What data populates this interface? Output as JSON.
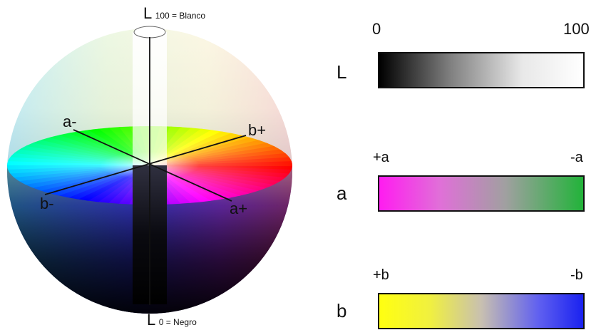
{
  "sphere": {
    "top_label_letter": "L",
    "top_label_value": "100 = Blanco",
    "bottom_label_letter": "L",
    "bottom_label_value": "0 = Negro",
    "axis_labels": {
      "a_minus": "a-",
      "a_plus": "a+",
      "b_plus": "b+",
      "b_minus": "b-"
    }
  },
  "scales": {
    "L": {
      "name": "L",
      "left_end": "0",
      "right_end": "100",
      "colors": [
        "#000000",
        "#ffffff"
      ]
    },
    "a": {
      "name": "a",
      "left_end": "+a",
      "right_end": "-a",
      "colors": [
        "#ff1cf0",
        "#22b33a"
      ]
    },
    "b": {
      "name": "b",
      "left_end": "+b",
      "right_end": "-b",
      "colors": [
        "#ffff10",
        "#1a22f0"
      ]
    }
  }
}
